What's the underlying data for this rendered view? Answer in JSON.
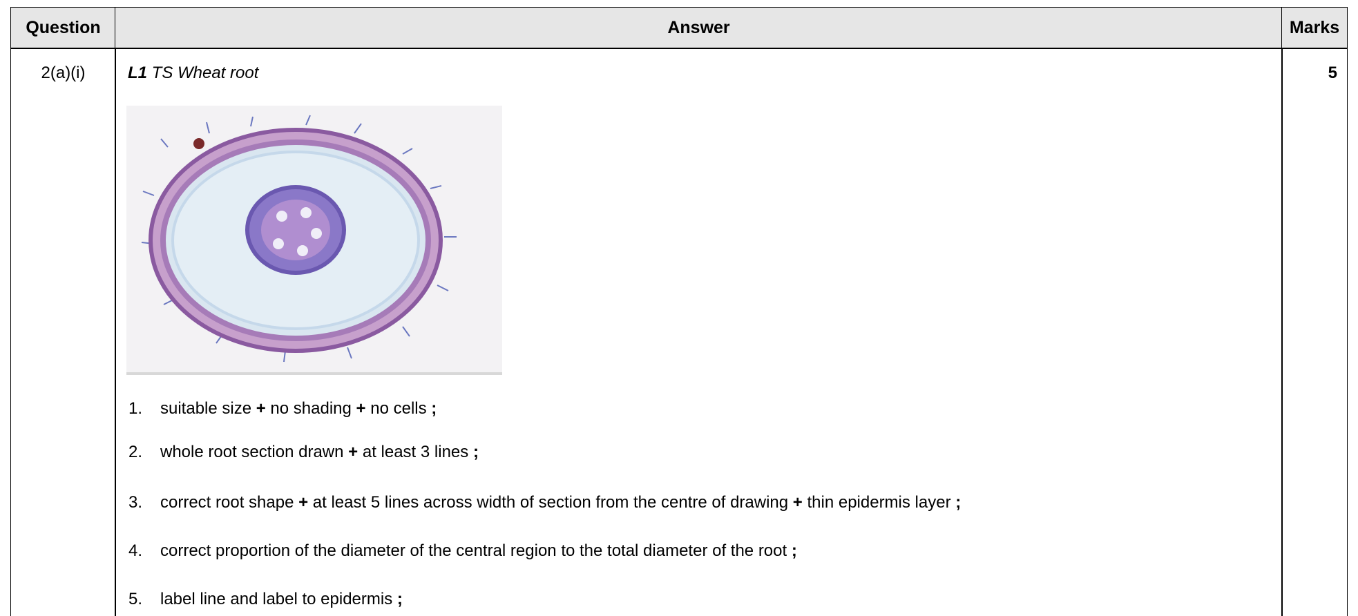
{
  "table": {
    "header": {
      "question": "Question",
      "answer": "Answer",
      "marks": "Marks"
    },
    "row": {
      "question": "2(a)(i)",
      "title": {
        "label": "L1",
        "text": " TS Wheat root"
      },
      "marks": "5",
      "items": [
        {
          "number": "1.",
          "segments": [
            "suitable size ",
            "+",
            " no shading ",
            "+",
            " no cells ",
            ";"
          ]
        },
        {
          "number": "2.",
          "segments": [
            "whole root section drawn ",
            "+",
            " at least 3 lines ",
            ";"
          ]
        },
        {
          "number": "3.",
          "segments": [
            "correct root shape ",
            "+",
            " at least 5 lines across width of section from the centre of drawing ",
            "+",
            " thin epidermis layer ",
            ";"
          ]
        },
        {
          "number": "4.",
          "segments": [
            "correct proportion of the diameter of the central region to the total diameter of the root ",
            ";"
          ]
        },
        {
          "number": "5.",
          "segments": [
            "label line and label to epidermis ",
            ";"
          ]
        }
      ]
    }
  }
}
